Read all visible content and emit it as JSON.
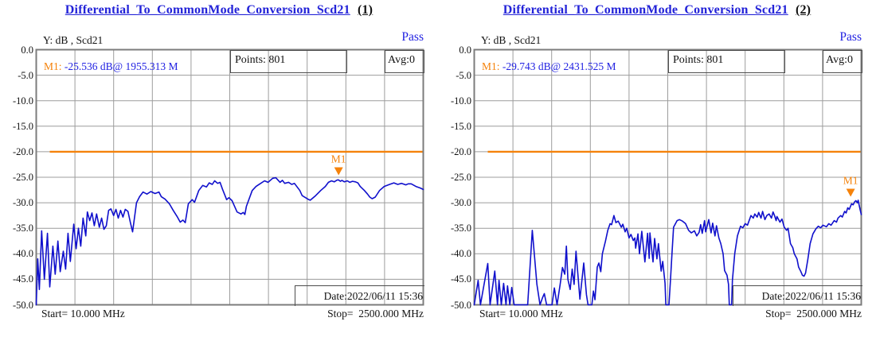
{
  "colors": {
    "title_blue": "#2323d8",
    "status_pass_blue": "#2222e2",
    "marker_orange": "#f5820a",
    "limit_orange": "#f5820a",
    "trace_blue": "#1010cc",
    "grid_gray": "#9c9c9c",
    "border_gray": "#7c7c7c"
  },
  "chart_data": [
    {
      "type": "line",
      "title": "Differential_To_CommonMode_Conversion_Scd21",
      "title_index": "(1)",
      "status": "Pass",
      "y_axis_label": "Y: dB , Scd21",
      "points_label": "Points: 801",
      "points": 801,
      "avg_label": "Avg:0",
      "avg": 0,
      "marker": {
        "label": "M1",
        "prefix": "M1:",
        "value_text": " -25.536 dB@ 1955.313 M",
        "value_db": -25.536,
        "freq_mhz": 1955.313,
        "color": "#f5820a"
      },
      "date_label": "Date:2022/06/11 15:36",
      "start_label": "Start= 10.000 MHz",
      "stop_label": "Stop=  2500.000 MHz",
      "start_mhz": 10,
      "stop_mhz": 2500,
      "xlim_mhz": [
        10,
        2500
      ],
      "ylim_db": [
        -50,
        0
      ],
      "y_ticks": [
        "0.0",
        "-5.0",
        "-10.0",
        "-15.0",
        "-20.0",
        "-25.0",
        "-30.0",
        "-35.0",
        "-40.0",
        "-45.0",
        "-50.0"
      ],
      "x_divisions": 10,
      "grid": true,
      "grid_color": "#9c9c9c",
      "border_color": "#7c7c7c",
      "trace_color": "#1010cc",
      "limit_line": {
        "value_db": -20,
        "color": "#f5820a",
        "start_fraction": 0.035
      },
      "trace_format": "[fraction_of_frequency_span, dB]",
      "trace": [
        [
          0.0,
          -50
        ],
        [
          0.004,
          -41
        ],
        [
          0.008,
          -47
        ],
        [
          0.014,
          -35.5
        ],
        [
          0.021,
          -45
        ],
        [
          0.029,
          -36
        ],
        [
          0.035,
          -46.5
        ],
        [
          0.043,
          -38.5
        ],
        [
          0.049,
          -44
        ],
        [
          0.056,
          -37.5
        ],
        [
          0.062,
          -43.5
        ],
        [
          0.07,
          -39.5
        ],
        [
          0.076,
          -43
        ],
        [
          0.082,
          -36
        ],
        [
          0.088,
          -41.5
        ],
        [
          0.097,
          -34.2
        ],
        [
          0.103,
          -39
        ],
        [
          0.109,
          -35
        ],
        [
          0.115,
          -38.5
        ],
        [
          0.121,
          -33
        ],
        [
          0.128,
          -36.5
        ],
        [
          0.132,
          -31.8
        ],
        [
          0.138,
          -33.5
        ],
        [
          0.144,
          -32
        ],
        [
          0.15,
          -34.5
        ],
        [
          0.156,
          -32.2
        ],
        [
          0.163,
          -34.8
        ],
        [
          0.169,
          -33
        ],
        [
          0.175,
          -35.2
        ],
        [
          0.181,
          -34.5
        ],
        [
          0.187,
          -31.5
        ],
        [
          0.193,
          -31.2
        ],
        [
          0.2,
          -32.5
        ],
        [
          0.206,
          -31.3
        ],
        [
          0.212,
          -33
        ],
        [
          0.218,
          -31.5
        ],
        [
          0.224,
          -32.8
        ],
        [
          0.23,
          -31.3
        ],
        [
          0.237,
          -31.7
        ],
        [
          0.243,
          -33.8
        ],
        [
          0.249,
          -35.7
        ],
        [
          0.259,
          -30
        ],
        [
          0.267,
          -28.8
        ],
        [
          0.276,
          -27.9
        ],
        [
          0.286,
          -28.3
        ],
        [
          0.296,
          -27.8
        ],
        [
          0.307,
          -28.2
        ],
        [
          0.317,
          -27.9
        ],
        [
          0.323,
          -28.8
        ],
        [
          0.333,
          -29.3
        ],
        [
          0.344,
          -30.2
        ],
        [
          0.354,
          -31.5
        ],
        [
          0.364,
          -32.7
        ],
        [
          0.372,
          -33.8
        ],
        [
          0.379,
          -33.4
        ],
        [
          0.385,
          -33.9
        ],
        [
          0.393,
          -30.2
        ],
        [
          0.403,
          -29.4
        ],
        [
          0.409,
          -29.9
        ],
        [
          0.42,
          -27.6
        ],
        [
          0.43,
          -26.6
        ],
        [
          0.44,
          -26.9
        ],
        [
          0.447,
          -26.1
        ],
        [
          0.455,
          -26.4
        ],
        [
          0.461,
          -25.7
        ],
        [
          0.469,
          -26.2
        ],
        [
          0.475,
          -26.0
        ],
        [
          0.481,
          -27.3
        ],
        [
          0.492,
          -29.4
        ],
        [
          0.498,
          -29.0
        ],
        [
          0.506,
          -29.6
        ],
        [
          0.519,
          -31.8
        ],
        [
          0.529,
          -32.2
        ],
        [
          0.535,
          -31.9
        ],
        [
          0.539,
          -32.3
        ],
        [
          0.543,
          -30.7
        ],
        [
          0.558,
          -27.6
        ],
        [
          0.568,
          -26.8
        ],
        [
          0.578,
          -26.3
        ],
        [
          0.59,
          -25.7
        ],
        [
          0.599,
          -26.0
        ],
        [
          0.611,
          -25.2
        ],
        [
          0.619,
          -25.1
        ],
        [
          0.63,
          -26.0
        ],
        [
          0.636,
          -25.6
        ],
        [
          0.642,
          -26.2
        ],
        [
          0.652,
          -26.0
        ],
        [
          0.66,
          -26.4
        ],
        [
          0.667,
          -26.2
        ],
        [
          0.681,
          -27.6
        ],
        [
          0.687,
          -28.6
        ],
        [
          0.702,
          -29.3
        ],
        [
          0.708,
          -29.5
        ],
        [
          0.722,
          -28.6
        ],
        [
          0.735,
          -27.6
        ],
        [
          0.747,
          -26.8
        ],
        [
          0.755,
          -26.0
        ],
        [
          0.763,
          -25.7
        ],
        [
          0.77,
          -25.9
        ],
        [
          0.776,
          -25.6
        ],
        [
          0.78,
          -25.5
        ],
        [
          0.786,
          -25.8
        ],
        [
          0.79,
          -25.6
        ],
        [
          0.796,
          -25.9
        ],
        [
          0.804,
          -25.7
        ],
        [
          0.81,
          -26.0
        ],
        [
          0.817,
          -25.8
        ],
        [
          0.825,
          -25.9
        ],
        [
          0.831,
          -26.1
        ],
        [
          0.837,
          -26.8
        ],
        [
          0.848,
          -27.6
        ],
        [
          0.856,
          -28.3
        ],
        [
          0.862,
          -28.9
        ],
        [
          0.868,
          -29.2
        ],
        [
          0.876,
          -28.9
        ],
        [
          0.887,
          -27.6
        ],
        [
          0.899,
          -26.8
        ],
        [
          0.913,
          -26.4
        ],
        [
          0.924,
          -26.1
        ],
        [
          0.934,
          -26.4
        ],
        [
          0.944,
          -26.2
        ],
        [
          0.955,
          -26.5
        ],
        [
          0.961,
          -26.3
        ],
        [
          0.969,
          -26.3
        ],
        [
          0.981,
          -26.8
        ],
        [
          0.992,
          -27.1
        ],
        [
          1.0,
          -27.4
        ]
      ]
    },
    {
      "type": "line",
      "title": "Differential_To_CommonMode_Conversion_Scd21",
      "title_index": "(2)",
      "status": "Pass",
      "y_axis_label": "Y: dB , Scd21",
      "points_label": "Points: 801",
      "points": 801,
      "avg_label": "Avg:0",
      "avg": 0,
      "marker": {
        "label": "M1",
        "prefix": "M1:",
        "value_text": " -29.743 dB@ 2431.525 M",
        "value_db": -29.743,
        "freq_mhz": 2431.525,
        "color": "#f5820a"
      },
      "date_label": "Date:2022/06/11 15:36",
      "start_label": "Start= 10.000 MHz",
      "stop_label": "Stop=  2500.000 MHz",
      "start_mhz": 10,
      "stop_mhz": 2500,
      "xlim_mhz": [
        10,
        2500
      ],
      "ylim_db": [
        -50,
        0
      ],
      "y_ticks": [
        "0.0",
        "-5.0",
        "-10.0",
        "-15.0",
        "-20.0",
        "-25.0",
        "-30.0",
        "-35.0",
        "-40.0",
        "-45.0",
        "-50.0"
      ],
      "x_divisions": 10,
      "grid": true,
      "grid_color": "#9c9c9c",
      "border_color": "#7c7c7c",
      "trace_color": "#1010cc",
      "limit_line": {
        "value_db": -20,
        "color": "#f5820a",
        "start_fraction": 0.035
      },
      "trace_format": "[fraction_of_frequency_span, dB]",
      "trace": [
        [
          0.0,
          -50
        ],
        [
          0.01,
          -45.2
        ],
        [
          0.016,
          -50
        ],
        [
          0.035,
          -41.9
        ],
        [
          0.041,
          -50
        ],
        [
          0.053,
          -43.4
        ],
        [
          0.06,
          -50
        ],
        [
          0.064,
          -45.2
        ],
        [
          0.07,
          -50
        ],
        [
          0.076,
          -45.8
        ],
        [
          0.082,
          -50
        ],
        [
          0.086,
          -46.3
        ],
        [
          0.092,
          -50
        ],
        [
          0.097,
          -46.6
        ],
        [
          0.103,
          -50
        ],
        [
          0.138,
          -50
        ],
        [
          0.15,
          -35.4
        ],
        [
          0.162,
          -46.0
        ],
        [
          0.17,
          -50
        ],
        [
          0.177,
          -48.5
        ],
        [
          0.181,
          -47.8
        ],
        [
          0.187,
          -50
        ],
        [
          0.201,
          -50
        ],
        [
          0.207,
          -46.7
        ],
        [
          0.214,
          -50
        ],
        [
          0.222,
          -46.0
        ],
        [
          0.228,
          -42.7
        ],
        [
          0.234,
          -44.0
        ],
        [
          0.238,
          -38.5
        ],
        [
          0.242,
          -45.0
        ],
        [
          0.248,
          -47.0
        ],
        [
          0.253,
          -43.0
        ],
        [
          0.258,
          -46.0
        ],
        [
          0.263,
          -39.5
        ],
        [
          0.273,
          -48.9
        ],
        [
          0.283,
          -41.8
        ],
        [
          0.29,
          -48.0
        ],
        [
          0.294,
          -50
        ],
        [
          0.304,
          -50
        ],
        [
          0.308,
          -47.3
        ],
        [
          0.312,
          -49.0
        ],
        [
          0.318,
          -42.6
        ],
        [
          0.322,
          -41.8
        ],
        [
          0.327,
          -43.5
        ],
        [
          0.331,
          -40.0
        ],
        [
          0.339,
          -37.5
        ],
        [
          0.345,
          -35.4
        ],
        [
          0.351,
          -34.1
        ],
        [
          0.355,
          -34.3
        ],
        [
          0.361,
          -32.5
        ],
        [
          0.366,
          -33.9
        ],
        [
          0.372,
          -33.6
        ],
        [
          0.38,
          -34.8
        ],
        [
          0.384,
          -34.2
        ],
        [
          0.39,
          -35.7
        ],
        [
          0.394,
          -35.0
        ],
        [
          0.4,
          -36.9
        ],
        [
          0.405,
          -36.2
        ],
        [
          0.411,
          -37.4
        ],
        [
          0.415,
          -36.9
        ],
        [
          0.417,
          -38.9
        ],
        [
          0.423,
          -36.1
        ],
        [
          0.427,
          -40.0
        ],
        [
          0.433,
          -35.6
        ],
        [
          0.441,
          -41.6
        ],
        [
          0.448,
          -36.0
        ],
        [
          0.452,
          -40.9
        ],
        [
          0.454,
          -35.9
        ],
        [
          0.462,
          -41.6
        ],
        [
          0.466,
          -37.0
        ],
        [
          0.472,
          -41.0
        ],
        [
          0.476,
          -38.0
        ],
        [
          0.483,
          -43.4
        ],
        [
          0.487,
          -41.5
        ],
        [
          0.493,
          -45.8
        ],
        [
          0.495,
          -50
        ],
        [
          0.503,
          -50
        ],
        [
          0.507,
          -45.2
        ],
        [
          0.511,
          -40.0
        ],
        [
          0.515,
          -34.8
        ],
        [
          0.524,
          -33.5
        ],
        [
          0.53,
          -33.3
        ],
        [
          0.538,
          -33.6
        ],
        [
          0.546,
          -34.1
        ],
        [
          0.554,
          -35.4
        ],
        [
          0.561,
          -35.9
        ],
        [
          0.569,
          -35.5
        ],
        [
          0.575,
          -36.5
        ],
        [
          0.581,
          -35.8
        ],
        [
          0.585,
          -34.3
        ],
        [
          0.589,
          -36.0
        ],
        [
          0.595,
          -33.5
        ],
        [
          0.598,
          -35.7
        ],
        [
          0.606,
          -33.3
        ],
        [
          0.612,
          -35.9
        ],
        [
          0.616,
          -34.0
        ],
        [
          0.622,
          -36.5
        ],
        [
          0.626,
          -34.5
        ],
        [
          0.632,
          -36.9
        ],
        [
          0.637,
          -38.0
        ],
        [
          0.643,
          -40.0
        ],
        [
          0.647,
          -43.3
        ],
        [
          0.653,
          -44.2
        ],
        [
          0.657,
          -46.0
        ],
        [
          0.659,
          -50
        ],
        [
          0.665,
          -50
        ],
        [
          0.667,
          -45.2
        ],
        [
          0.673,
          -40.0
        ],
        [
          0.68,
          -36.5
        ],
        [
          0.688,
          -34.6
        ],
        [
          0.694,
          -34.9
        ],
        [
          0.7,
          -34.1
        ],
        [
          0.706,
          -34.4
        ],
        [
          0.715,
          -32.5
        ],
        [
          0.721,
          -33.0
        ],
        [
          0.725,
          -32.2
        ],
        [
          0.731,
          -32.8
        ],
        [
          0.735,
          -31.9
        ],
        [
          0.741,
          -33.0
        ],
        [
          0.745,
          -31.7
        ],
        [
          0.751,
          -33.3
        ],
        [
          0.756,
          -32.5
        ],
        [
          0.762,
          -32.2
        ],
        [
          0.768,
          -33.0
        ],
        [
          0.772,
          -31.8
        ],
        [
          0.776,
          -32.5
        ],
        [
          0.78,
          -33.5
        ],
        [
          0.782,
          -32.7
        ],
        [
          0.79,
          -33.8
        ],
        [
          0.795,
          -33.2
        ],
        [
          0.801,
          -34.8
        ],
        [
          0.807,
          -35.4
        ],
        [
          0.811,
          -35.0
        ],
        [
          0.817,
          -38.0
        ],
        [
          0.823,
          -38.8
        ],
        [
          0.827,
          -40.0
        ],
        [
          0.834,
          -41.0
        ],
        [
          0.838,
          -42.6
        ],
        [
          0.844,
          -43.5
        ],
        [
          0.848,
          -44.2
        ],
        [
          0.852,
          -44.4
        ],
        [
          0.856,
          -43.8
        ],
        [
          0.862,
          -41.1
        ],
        [
          0.868,
          -38.0
        ],
        [
          0.875,
          -36.1
        ],
        [
          0.883,
          -35.1
        ],
        [
          0.889,
          -34.6
        ],
        [
          0.895,
          -34.9
        ],
        [
          0.901,
          -34.4
        ],
        [
          0.91,
          -34.7
        ],
        [
          0.916,
          -34.1
        ],
        [
          0.922,
          -34.4
        ],
        [
          0.93,
          -33.5
        ],
        [
          0.936,
          -33.8
        ],
        [
          0.94,
          -33.0
        ],
        [
          0.947,
          -32.5
        ],
        [
          0.951,
          -32.8
        ],
        [
          0.957,
          -31.7
        ],
        [
          0.961,
          -32.0
        ],
        [
          0.965,
          -31.0
        ],
        [
          0.969,
          -31.3
        ],
        [
          0.975,
          -30.2
        ],
        [
          0.979,
          -30.4
        ],
        [
          0.983,
          -29.8
        ],
        [
          0.986,
          -29.6
        ],
        [
          0.99,
          -30.0
        ],
        [
          0.992,
          -29.5
        ],
        [
          0.994,
          -30.3
        ],
        [
          0.997,
          -31.3
        ],
        [
          1.0,
          -32.3
        ]
      ]
    }
  ]
}
